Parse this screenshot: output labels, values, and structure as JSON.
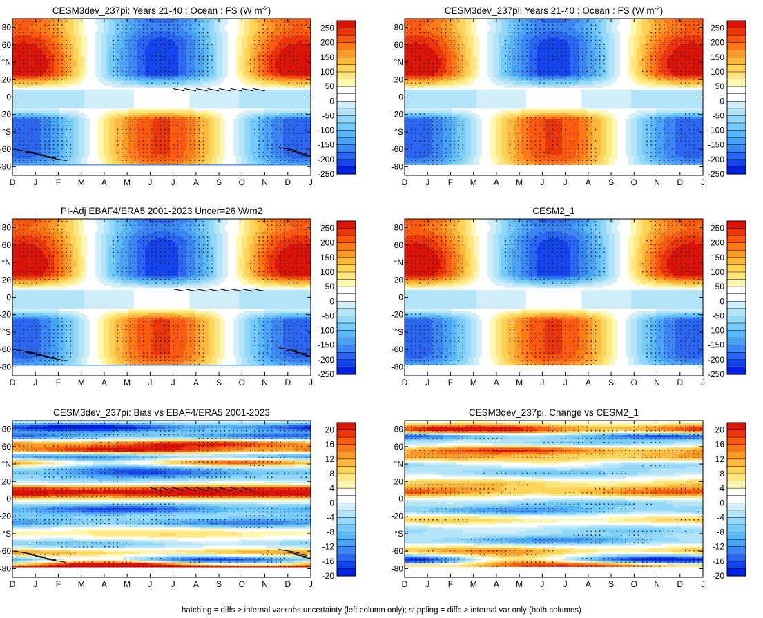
{
  "footnote": "hatching = diffs > internal var+obs uncertainty (left column only); stippling = diffs > internal var only (both columns)",
  "chart_data": [
    {
      "type": "heatmap",
      "title": "CESM3dev_237pi: Years 21-40 : Ocean : FS (W m",
      "title_superscript": "-2",
      "title_suffix": ")",
      "x_ticks": [
        "D",
        "J",
        "F",
        "M",
        "A",
        "M",
        "J",
        "J",
        "A",
        "S",
        "O",
        "N",
        "D",
        "J"
      ],
      "y_ticks": [
        "80",
        "60",
        "°N",
        "20",
        "0",
        "-20",
        "°S",
        "-60",
        "-80"
      ],
      "ylim": [
        -90,
        90
      ],
      "colorbar_labels": [
        "250",
        "200",
        "150",
        "100",
        "50",
        "0",
        "-50",
        "-100",
        "-150",
        "-200",
        "-250"
      ],
      "field": "seasonal",
      "scale": 250,
      "hatching": true
    },
    {
      "type": "heatmap",
      "title": "CESM3dev_237pi: Years 21-40 : Ocean : FS (W m",
      "title_superscript": "-2",
      "title_suffix": ")",
      "x_ticks": [
        "D",
        "J",
        "F",
        "M",
        "A",
        "M",
        "J",
        "J",
        "A",
        "S",
        "O",
        "N",
        "D",
        "J"
      ],
      "y_ticks": [
        "80",
        "60",
        "°N",
        "20",
        "0",
        "-20",
        "°S",
        "-60",
        "-80"
      ],
      "ylim": [
        -90,
        90
      ],
      "colorbar_labels": [
        "250",
        "200",
        "150",
        "100",
        "50",
        "0",
        "-50",
        "-100",
        "-150",
        "-200",
        "-250"
      ],
      "field": "seasonal",
      "scale": 250,
      "hatching": false
    },
    {
      "type": "heatmap",
      "title": "PI-Adj EBAF4/ERA5 2001-2023 Uncer=26 W/m2",
      "x_ticks": [
        "D",
        "J",
        "F",
        "M",
        "A",
        "M",
        "J",
        "J",
        "A",
        "S",
        "O",
        "N",
        "D",
        "J"
      ],
      "y_ticks": [
        "80",
        "60",
        "°N",
        "20",
        "0",
        "-20",
        "°S",
        "-60",
        "-80"
      ],
      "ylim": [
        -90,
        90
      ],
      "colorbar_labels": [
        "250",
        "200",
        "150",
        "100",
        "50",
        "0",
        "-50",
        "-100",
        "-150",
        "-200",
        "-250"
      ],
      "field": "seasonal",
      "scale": 250,
      "hatching": true
    },
    {
      "type": "heatmap",
      "title": "CESM2_1",
      "x_ticks": [
        "D",
        "J",
        "F",
        "M",
        "A",
        "M",
        "J",
        "J",
        "A",
        "S",
        "O",
        "N",
        "D",
        "J"
      ],
      "y_ticks": [
        "80",
        "60",
        "°N",
        "20",
        "0",
        "-20",
        "°S",
        "-60",
        "-80"
      ],
      "ylim": [
        -90,
        90
      ],
      "colorbar_labels": [
        "250",
        "200",
        "150",
        "100",
        "50",
        "0",
        "-50",
        "-100",
        "-150",
        "-200",
        "-250"
      ],
      "field": "seasonal",
      "scale": 250,
      "hatching": false
    },
    {
      "type": "heatmap",
      "title": "CESM3dev_237pi: Bias vs EBAF4/ERA5 2001-2023",
      "x_ticks": [
        "D",
        "J",
        "F",
        "M",
        "A",
        "M",
        "J",
        "J",
        "A",
        "S",
        "O",
        "N",
        "D",
        "J"
      ],
      "y_ticks": [
        "80",
        "60",
        "°N",
        "20",
        "0",
        "-20",
        "°S",
        "-60",
        "-80"
      ],
      "ylim": [
        -90,
        90
      ],
      "colorbar_labels": [
        "20",
        "16",
        "12",
        "8",
        "4",
        "0",
        "-4",
        "-8",
        "-12",
        "-16",
        "-20"
      ],
      "field": "bias",
      "scale": 20,
      "hatching": true
    },
    {
      "type": "heatmap",
      "title": "CESM3dev_237pi: Change vs CESM2_1",
      "x_ticks": [
        "D",
        "J",
        "F",
        "M",
        "A",
        "M",
        "J",
        "J",
        "A",
        "S",
        "O",
        "N",
        "D",
        "J"
      ],
      "y_ticks": [
        "80",
        "60",
        "°N",
        "20",
        "0",
        "-20",
        "°S",
        "-60",
        "-80"
      ],
      "ylim": [
        -90,
        90
      ],
      "colorbar_labels": [
        "20",
        "16",
        "12",
        "8",
        "4",
        "0",
        "-4",
        "-8",
        "-12",
        "-16",
        "-20"
      ],
      "field": "change",
      "scale": 20,
      "hatching": false
    }
  ],
  "colors": {
    "palette": [
      "#0022e6",
      "#1444ee",
      "#2a66f2",
      "#3c86f4",
      "#4aa2f6",
      "#5bb8f8",
      "#74caf8",
      "#93d8f8",
      "#b4e4f8",
      "#d2eef8",
      "#ffffff",
      "#ffffff",
      "#fff7b0",
      "#ffe680",
      "#ffd258",
      "#ffb83c",
      "#ff9a26",
      "#ff7a16",
      "#fb5a0e",
      "#ec360a",
      "#dc1408"
    ]
  }
}
